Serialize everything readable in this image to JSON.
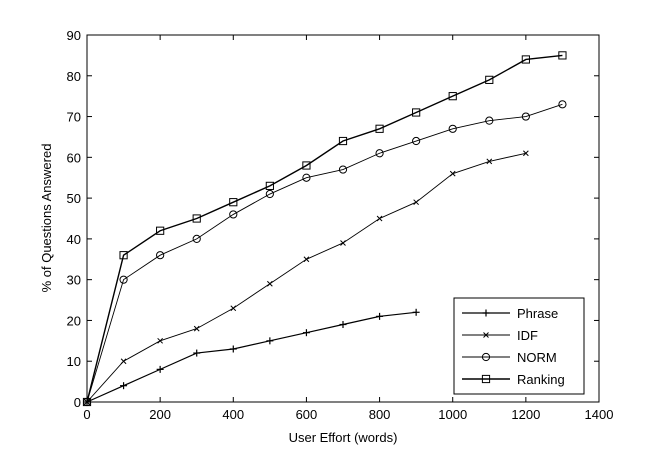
{
  "chart_data": {
    "type": "line",
    "xlabel": "User Effort (words)",
    "ylabel": "% of Questions Answered",
    "xlim": [
      0,
      1400
    ],
    "ylim": [
      0,
      90
    ],
    "xticks": [
      0,
      200,
      400,
      600,
      800,
      1000,
      1200,
      1400
    ],
    "yticks": [
      0,
      10,
      20,
      30,
      40,
      50,
      60,
      70,
      80,
      90
    ],
    "grid": false,
    "legend_position": "bottom-right",
    "series": [
      {
        "name": "Phrase",
        "marker": "plus",
        "x": [
          0,
          100,
          200,
          300,
          400,
          500,
          600,
          700,
          800,
          900
        ],
        "y": [
          0,
          4,
          8,
          12,
          13,
          15,
          17,
          19,
          21,
          22
        ]
      },
      {
        "name": "IDF",
        "marker": "x",
        "x": [
          0,
          100,
          200,
          300,
          400,
          500,
          600,
          700,
          800,
          900,
          1000,
          1100,
          1200
        ],
        "y": [
          0,
          10,
          15,
          18,
          23,
          29,
          35,
          39,
          45,
          49,
          56,
          59,
          61
        ]
      },
      {
        "name": "NORM",
        "marker": "circle",
        "x": [
          0,
          100,
          200,
          300,
          400,
          500,
          600,
          700,
          800,
          900,
          1000,
          1100,
          1200,
          1300
        ],
        "y": [
          0,
          30,
          36,
          40,
          46,
          51,
          55,
          57,
          61,
          64,
          67,
          69,
          70,
          73
        ]
      },
      {
        "name": "Ranking",
        "marker": "square",
        "x": [
          0,
          100,
          200,
          300,
          400,
          500,
          600,
          700,
          800,
          900,
          1000,
          1100,
          1200,
          1300
        ],
        "y": [
          0,
          36,
          42,
          45,
          49,
          53,
          58,
          64,
          67,
          71,
          75,
          79,
          84,
          85
        ]
      }
    ]
  }
}
